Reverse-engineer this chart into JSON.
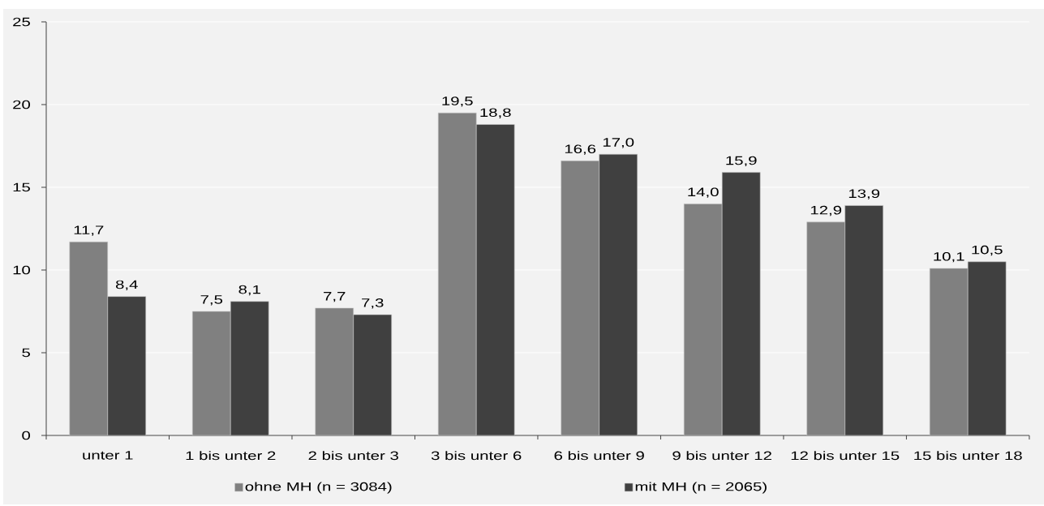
{
  "chart_data": {
    "type": "bar",
    "categories": [
      "unter 1",
      "1 bis unter 2",
      "2 bis unter 3",
      "3 bis unter 6",
      "6 bis unter 9",
      "9 bis unter 12",
      "12 bis unter 15",
      "15 bis unter 18"
    ],
    "series": [
      {
        "name": "ohne MH (n = 3084)",
        "color": "#808080",
        "values": [
          11.7,
          7.5,
          7.7,
          19.5,
          16.6,
          14.0,
          12.9,
          10.1
        ],
        "value_labels": [
          "11,7",
          "7,5",
          "7,7",
          "19,5",
          "16,6",
          "14,0",
          "12,9",
          "10,1"
        ]
      },
      {
        "name": "mit MH (n = 2065)",
        "color": "#404040",
        "values": [
          8.4,
          8.1,
          7.3,
          18.8,
          17.0,
          15.9,
          13.9,
          10.5
        ],
        "value_labels": [
          "8,4",
          "8,1",
          "7,3",
          "18,8",
          "17,0",
          "15,9",
          "13,9",
          "10,5"
        ]
      }
    ],
    "ylim": [
      0,
      25
    ],
    "yticks": [
      0,
      5,
      10,
      15,
      20,
      25
    ],
    "grid": "y",
    "legend": "bottom"
  }
}
